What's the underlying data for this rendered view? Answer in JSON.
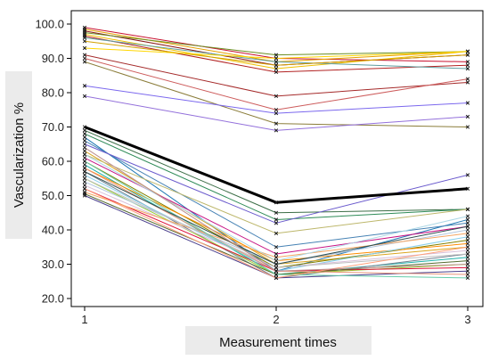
{
  "chart_data": {
    "type": "line",
    "xlabel": "Measurement times",
    "ylabel": "Vascularization %",
    "x": [
      1,
      2,
      3
    ],
    "xlim": [
      1,
      3
    ],
    "ylim": [
      20,
      100
    ],
    "yticks": [
      "20.0",
      "30.0",
      "40.0",
      "50.0",
      "60.0",
      "70.0",
      "80.0",
      "90.0",
      "100.0"
    ],
    "xticks": [
      "1",
      "2",
      "3"
    ],
    "grid": false,
    "legend": "none",
    "highlight_series_index": 0,
    "series": [
      {
        "values": [
          70,
          48,
          52
        ],
        "color": "#000000"
      },
      {
        "values": [
          99,
          90,
          89
        ],
        "color": "#c8102e"
      },
      {
        "values": [
          98.5,
          89,
          92
        ],
        "color": "#e69f00"
      },
      {
        "values": [
          98,
          88,
          91
        ],
        "color": "#8b1a1a"
      },
      {
        "values": [
          97.5,
          91,
          92
        ],
        "color": "#6b8e23"
      },
      {
        "values": [
          97,
          87,
          92
        ],
        "color": "#f0c000"
      },
      {
        "values": [
          96.5,
          86,
          88
        ],
        "color": "#b22222"
      },
      {
        "values": [
          96,
          89,
          87
        ],
        "color": "#5f9ea0"
      },
      {
        "values": [
          95,
          88,
          91
        ],
        "color": "#d2a000"
      },
      {
        "values": [
          93,
          90,
          92
        ],
        "color": "#ffd700"
      },
      {
        "values": [
          91,
          79,
          83
        ],
        "color": "#a52a2a"
      },
      {
        "values": [
          90,
          75,
          84
        ],
        "color": "#cd5c5c"
      },
      {
        "values": [
          89,
          71,
          70
        ],
        "color": "#8b7d3a"
      },
      {
        "values": [
          82,
          74,
          77
        ],
        "color": "#7b68ee"
      },
      {
        "values": [
          79,
          69,
          73
        ],
        "color": "#9370db"
      },
      {
        "values": [
          69,
          45,
          46
        ],
        "color": "#3c6e47"
      },
      {
        "values": [
          68,
          43,
          46
        ],
        "color": "#2e8b57"
      },
      {
        "values": [
          67,
          28,
          43
        ],
        "color": "#1f77b4"
      },
      {
        "values": [
          66,
          35,
          42
        ],
        "color": "#4682b4"
      },
      {
        "values": [
          65,
          42,
          56
        ],
        "color": "#6a5acd"
      },
      {
        "values": [
          63,
          30,
          35
        ],
        "color": "#daa520"
      },
      {
        "values": [
          62,
          39,
          46
        ],
        "color": "#bdb76b"
      },
      {
        "values": [
          61,
          33,
          41
        ],
        "color": "#c71585"
      },
      {
        "values": [
          60,
          29,
          37
        ],
        "color": "#808000"
      },
      {
        "values": [
          59,
          27,
          32
        ],
        "color": "#20b2aa"
      },
      {
        "values": [
          58,
          31,
          36
        ],
        "color": "#ff8c00"
      },
      {
        "values": [
          57,
          26,
          33
        ],
        "color": "#708090"
      },
      {
        "values": [
          56,
          28,
          38
        ],
        "color": "#87ceeb"
      },
      {
        "values": [
          55,
          27,
          30
        ],
        "color": "#9acd32"
      },
      {
        "values": [
          54,
          30,
          40
        ],
        "color": "#b0c4de"
      },
      {
        "values": [
          53,
          29,
          34
        ],
        "color": "#d8bfd8"
      },
      {
        "values": [
          52,
          28,
          29
        ],
        "color": "#dc143c"
      },
      {
        "values": [
          51,
          32,
          39
        ],
        "color": "#f4a460"
      },
      {
        "values": [
          50.5,
          27,
          31
        ],
        "color": "#556b2f"
      },
      {
        "values": [
          50,
          26,
          28
        ],
        "color": "#483d8b"
      },
      {
        "values": [
          58,
          28,
          27
        ],
        "color": "#e9967a"
      },
      {
        "values": [
          60,
          27,
          26
        ],
        "color": "#66cdaa"
      },
      {
        "values": [
          55,
          29,
          33
        ],
        "color": "#c0c0c0"
      },
      {
        "values": [
          52,
          26,
          35
        ],
        "color": "#ffa07a"
      },
      {
        "values": [
          62,
          31,
          44
        ],
        "color": "#add8e6"
      },
      {
        "values": [
          57,
          30,
          41
        ],
        "color": "#2f4f4f"
      },
      {
        "values": [
          64,
          28,
          30
        ],
        "color": "#bc8f8f"
      }
    ]
  }
}
